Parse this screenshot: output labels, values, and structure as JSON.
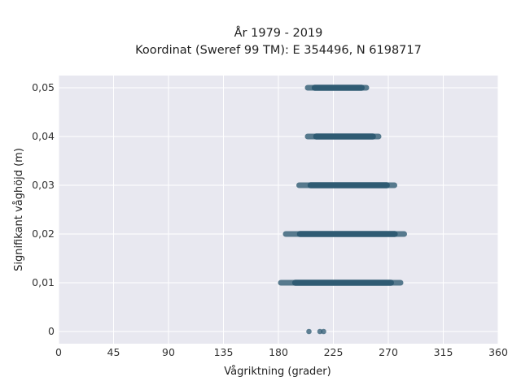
{
  "chart_data": {
    "type": "scatter",
    "title": "År 1979 - 2019",
    "subtitle": "Koordinat (Sweref 99 TM): E 354496, N 6198717",
    "xlabel": "Vågriktning (grader)",
    "ylabel": "Signifikant våghöjd (m)",
    "xlim": [
      0,
      360
    ],
    "ylim": [
      -0.0025,
      0.0525
    ],
    "x_ticks": [
      0,
      45,
      90,
      135,
      180,
      225,
      270,
      315,
      360
    ],
    "x_tick_labels": [
      "0",
      "45",
      "90",
      "135",
      "180",
      "225",
      "270",
      "315",
      "360"
    ],
    "y_ticks": [
      0,
      0.01,
      0.02,
      0.03,
      0.04,
      0.05
    ],
    "y_tick_labels": [
      "0",
      "0,01",
      "0,02",
      "0,03",
      "0,04",
      "0,05"
    ],
    "grid": true,
    "marker_color": "#2f5b73",
    "background_color": "#e8e8f0",
    "series": [
      {
        "points": [
          [
            205,
            0
          ],
          [
            214,
            0
          ],
          [
            217,
            0
          ]
        ],
        "ranges": [
          {
            "y": 0.01,
            "x_min": 182,
            "x_max": 280
          },
          {
            "y": 0.02,
            "x_min": 186,
            "x_max": 283
          },
          {
            "y": 0.03,
            "x_min": 197,
            "x_max": 275
          },
          {
            "y": 0.04,
            "x_min": 204,
            "x_max": 262
          },
          {
            "y": 0.05,
            "x_min": 204,
            "x_max": 252
          }
        ]
      }
    ]
  }
}
